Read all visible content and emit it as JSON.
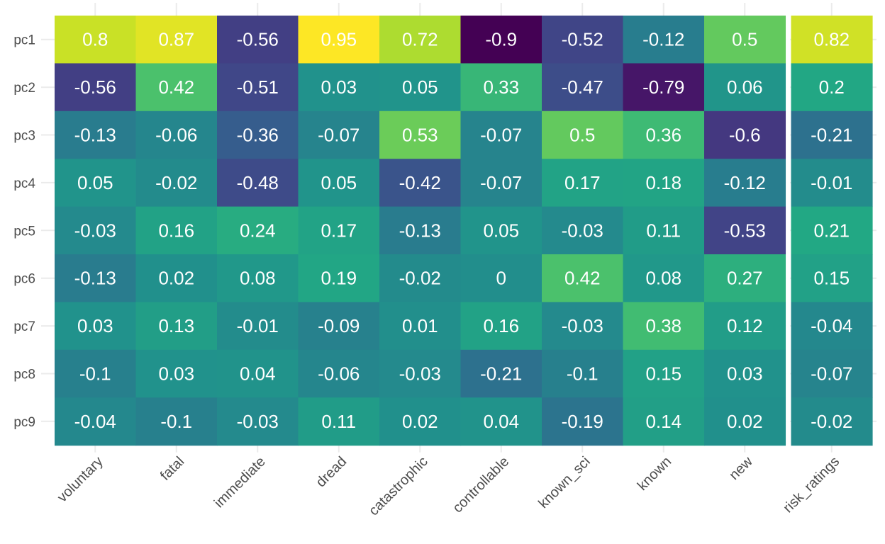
{
  "chart_data": {
    "type": "heatmap",
    "title": "",
    "xlabel": "",
    "ylabel": "",
    "columns": [
      "voluntary",
      "fatal",
      "immediate",
      "dread",
      "catastrophic",
      "controllable",
      "known_sci",
      "known",
      "new",
      "risk_ratings"
    ],
    "rows": [
      "pc1",
      "pc2",
      "pc3",
      "pc4",
      "pc5",
      "pc6",
      "pc7",
      "pc8",
      "pc9"
    ],
    "values": [
      [
        0.8,
        0.87,
        -0.56,
        0.95,
        0.72,
        -0.9,
        -0.52,
        -0.12,
        0.5,
        0.82
      ],
      [
        -0.56,
        0.42,
        -0.51,
        0.03,
        0.05,
        0.33,
        -0.47,
        -0.79,
        0.06,
        0.2
      ],
      [
        -0.13,
        -0.06,
        -0.36,
        -0.07,
        0.53,
        -0.07,
        0.5,
        0.36,
        -0.6,
        -0.21
      ],
      [
        0.05,
        -0.02,
        -0.48,
        0.05,
        -0.42,
        -0.07,
        0.17,
        0.18,
        -0.12,
        -0.01
      ],
      [
        -0.03,
        0.16,
        0.24,
        0.17,
        -0.13,
        0.05,
        -0.03,
        0.11,
        -0.53,
        0.21
      ],
      [
        -0.13,
        0.02,
        0.08,
        0.19,
        -0.02,
        0,
        0.42,
        0.08,
        0.27,
        0.15
      ],
      [
        0.03,
        0.13,
        -0.01,
        -0.09,
        0.01,
        0.16,
        -0.03,
        0.38,
        0.12,
        -0.04
      ],
      [
        -0.1,
        0.03,
        0.04,
        -0.06,
        -0.03,
        -0.21,
        -0.1,
        0.15,
        0.03,
        -0.07
      ],
      [
        -0.04,
        -0.1,
        -0.03,
        0.11,
        0.02,
        0.04,
        -0.19,
        0.14,
        0.02,
        -0.02
      ]
    ],
    "color_scale": "viridis",
    "value_range": [
      -0.9,
      0.95
    ],
    "separator_before_column": "risk_ratings",
    "grid": true,
    "legend": "none"
  }
}
